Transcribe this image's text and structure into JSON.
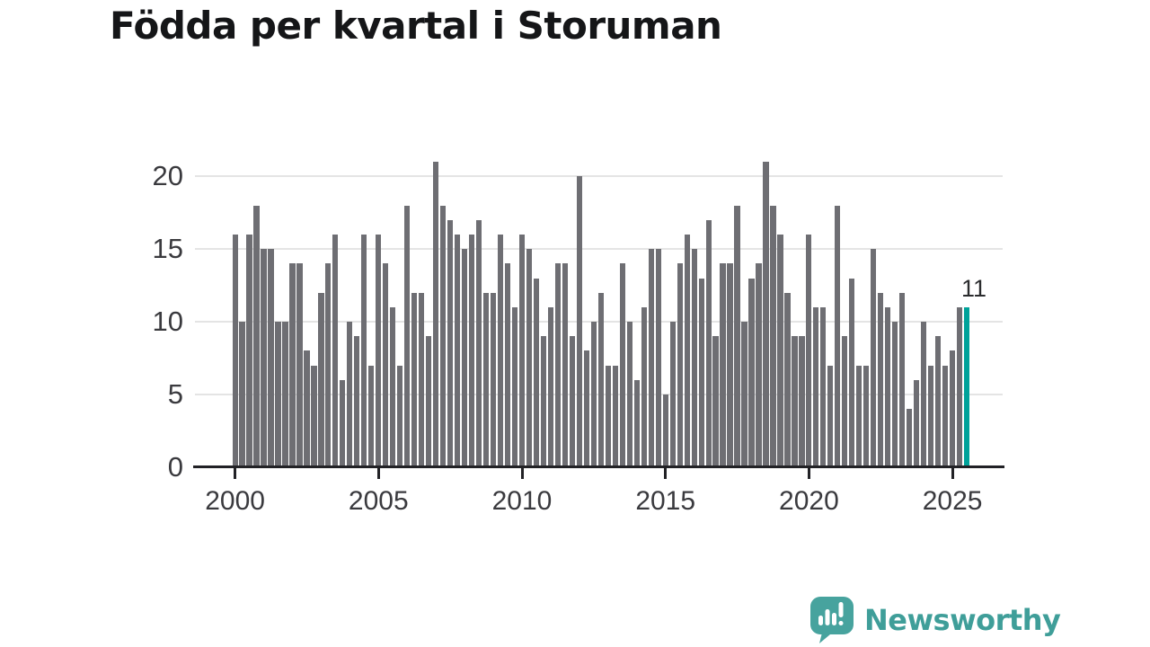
{
  "title": "Födda per kvartal i Storuman",
  "annotation": {
    "label": "11"
  },
  "logo": {
    "text": "Newsworthy",
    "icon": "speech-bubble-bar-chart-icon"
  },
  "colors": {
    "bar": "#6e6e73",
    "highlight": "#00a29a",
    "axis": "#222226",
    "grid": "#e4e4e4",
    "tick_text": "#3a3a3e",
    "logo_teal": "#3f9e99",
    "background": "#ffffff"
  },
  "chart_data": {
    "type": "bar",
    "title": "Födda per kvartal i Storuman",
    "x_unit": "quarter",
    "x_range": "2000 Q1 – 2025 Q3",
    "values": [
      16,
      10,
      16,
      18,
      15,
      15,
      10,
      10,
      14,
      14,
      8,
      7,
      12,
      14,
      16,
      6,
      10,
      9,
      16,
      7,
      16,
      14,
      11,
      7,
      18,
      12,
      12,
      9,
      21,
      18,
      17,
      16,
      15,
      16,
      17,
      12,
      12,
      16,
      14,
      11,
      16,
      15,
      13,
      9,
      11,
      14,
      14,
      9,
      20,
      8,
      10,
      12,
      7,
      7,
      14,
      10,
      6,
      11,
      15,
      15,
      5,
      10,
      14,
      16,
      15,
      13,
      17,
      9,
      14,
      14,
      18,
      10,
      13,
      14,
      21,
      18,
      16,
      12,
      9,
      9,
      16,
      11,
      11,
      7,
      18,
      9,
      13,
      7,
      7,
      15,
      12,
      11,
      10,
      12,
      4,
      6,
      10,
      7,
      9,
      7,
      8,
      11,
      11
    ],
    "highlight_last": true,
    "last_value_label": "11",
    "x_ticks": [
      {
        "index": 0,
        "label": "2000"
      },
      {
        "index": 20,
        "label": "2005"
      },
      {
        "index": 40,
        "label": "2010"
      },
      {
        "index": 60,
        "label": "2015"
      },
      {
        "index": 80,
        "label": "2020"
      },
      {
        "index": 100,
        "label": "2025"
      }
    ],
    "y_ticks": [
      {
        "value": 0,
        "label": "0"
      },
      {
        "value": 5,
        "label": "5"
      },
      {
        "value": 10,
        "label": "10"
      },
      {
        "value": 15,
        "label": "15"
      },
      {
        "value": 20,
        "label": "20"
      }
    ],
    "ylim": [
      0,
      21.6
    ],
    "grid": true,
    "legend": false
  }
}
